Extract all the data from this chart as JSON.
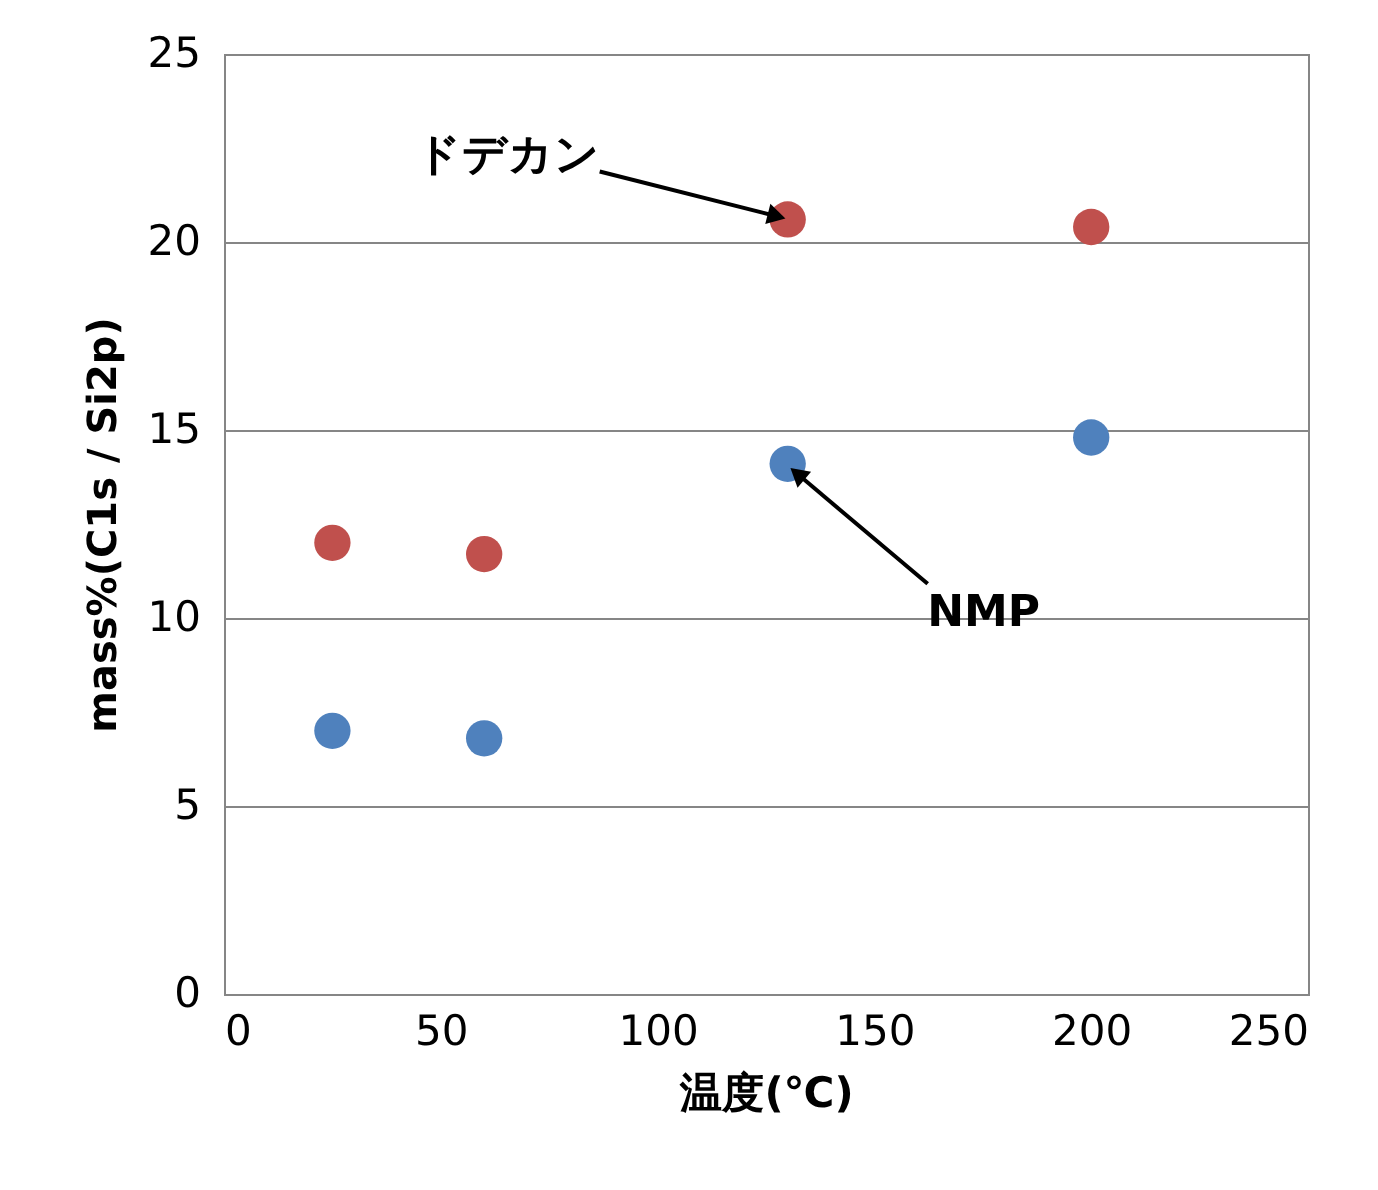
{
  "chart_data": {
    "type": "scatter",
    "xlabel": "温度(℃)",
    "ylabel": "mass%(C1s / Si2p)",
    "xlim": [
      0,
      250
    ],
    "xticks": [
      0,
      50,
      100,
      150,
      200,
      250
    ],
    "ylim": [
      0,
      25
    ],
    "yticks": [
      0,
      5,
      10,
      15,
      20,
      25
    ],
    "grid": "y",
    "legend": false,
    "marker": "circle",
    "series": [
      {
        "color": "#c0504d",
        "x": [
          25,
          60,
          130,
          200
        ],
        "values": [
          12.0,
          11.7,
          20.6,
          20.4
        ]
      },
      {
        "color": "#4f81bd",
        "x": [
          25,
          60,
          130,
          200
        ],
        "values": [
          7.0,
          6.8,
          14.1,
          14.8
        ]
      }
    ],
    "annotations": [
      {
        "text": "ドデカン",
        "x": 130,
        "y": 20.6
      },
      {
        "text": "NMP",
        "x": 130,
        "y": 14.1
      }
    ]
  }
}
